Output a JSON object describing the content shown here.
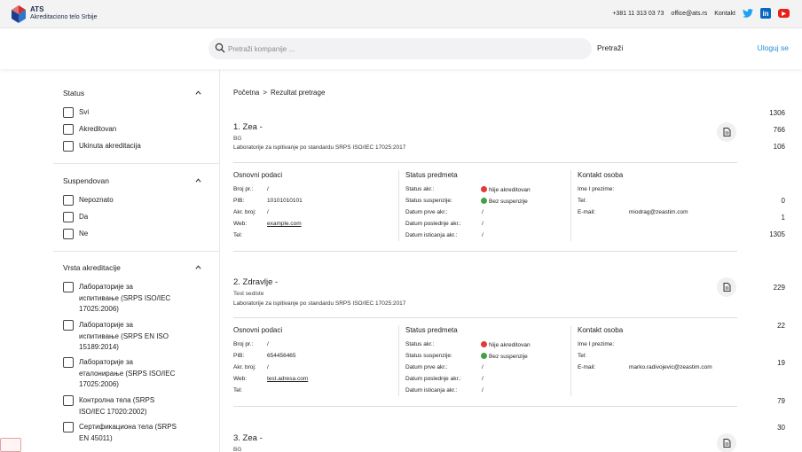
{
  "brand": {
    "name": "ATS",
    "subtitle": "Akreditaciono telo Srbije"
  },
  "top_links": {
    "phone": "+381 11 313 03 73",
    "email": "office@ats.rs",
    "contact": "Kontakt"
  },
  "search": {
    "placeholder": "Pretraži kompanije ...",
    "button": "Pretraži",
    "login": "Uloguj se"
  },
  "sidebar": {
    "status": {
      "title": "Status",
      "options": [
        {
          "label": "Svi",
          "count": "1306"
        },
        {
          "label": "Akreditovan",
          "count": "766"
        },
        {
          "label": "Ukinuta akreditacija",
          "count": "106"
        }
      ]
    },
    "suspendovan": {
      "title": "Suspendovan",
      "options": [
        {
          "label": "Nepoznato",
          "count": "0"
        },
        {
          "label": "Da",
          "count": "1"
        },
        {
          "label": "Ne",
          "count": "1305"
        }
      ]
    },
    "vrsta": {
      "title": "Vrsta akreditacije",
      "options": [
        {
          "line1": "Лабораторије за",
          "line2": "испитивање (SRPS ISO/IEC",
          "line3": "17025:2006)",
          "count": "229"
        },
        {
          "line1": "Лабораторије за",
          "line2": "испитивање (SRPS EN ISO",
          "line3": "15189:2014)",
          "count": "22"
        },
        {
          "line1": "Лабораторије за",
          "line2": "еталонирање (SRPS ISO/IEC",
          "line3": "17025:2006)",
          "count": "19"
        },
        {
          "line1": "Контролна тела (SRPS",
          "line2": "ISO/IEC 17020:2002)",
          "count": "79"
        },
        {
          "line1": "Сертификациона тела (SRPS",
          "line2": "EN 45011)",
          "count": "30"
        }
      ]
    }
  },
  "breadcrumb": {
    "home": "Početna",
    "separator": ">",
    "current": "Rezultat pretrage"
  },
  "column_titles": {
    "basic": "Osnovni podaci",
    "status": "Status predmeta",
    "contact": "Kontakt osoba"
  },
  "field_labels": {
    "reg_no": "Broj pr.:",
    "pib": "PIB:",
    "accr_no": "Akr. broj:",
    "web": "Web:",
    "tel": "Tel:",
    "status_akr": "Status akr.:",
    "status_susp": "Status suspenzije:",
    "first_date": "Datum prve akr.:",
    "last_date": "Datum poslednje akr.:",
    "expiry_date": "Datum isticanja akr.:",
    "name": "Ime I prezime:",
    "c_tel": "Tel:",
    "email": "E-mail:"
  },
  "results": [
    {
      "title": "1. Zea -",
      "city": "BG",
      "standard": "Laboratorije za ispitivanje po standardu SRPS ISO/IEC 17025:2017",
      "reg_no": "/",
      "pib": "10101010101",
      "accr_no": "/",
      "web": "example.com",
      "tel": "",
      "status_akr": "Nije akreditovan",
      "status_susp": "Bez suspenzije",
      "first_date": "/",
      "last_date": "/",
      "expiry_date": "/",
      "contact_name": "",
      "contact_tel": "",
      "contact_email": "miodrag@zeastim.com"
    },
    {
      "title": "2. Zdravlje -",
      "city": "Test sediste",
      "standard": "Laboratorije za ispitivanje po standardu SRPS ISO/IEC 17025:2017",
      "reg_no": "/",
      "pib": "654456465",
      "accr_no": "/",
      "web": "test.adresa.com",
      "tel": "",
      "status_akr": "Nije akreditovan",
      "status_susp": "Bez suspenzije",
      "first_date": "/",
      "last_date": "/",
      "expiry_date": "/",
      "contact_name": "",
      "contact_tel": "",
      "contact_email": "marko.radivojevic@zeastim.com"
    },
    {
      "title": "3. Zea -",
      "city": "BG"
    }
  ],
  "colors": {
    "accent": "#1e8bd6",
    "status_red": "#e53935",
    "status_green": "#43a047",
    "brand_blue": "#1d3d8f",
    "brand_red": "#d32f2f"
  },
  "icons": [
    "search-icon",
    "chevron-up-icon",
    "document-icon",
    "twitter-icon",
    "linkedin-icon",
    "youtube-icon"
  ]
}
